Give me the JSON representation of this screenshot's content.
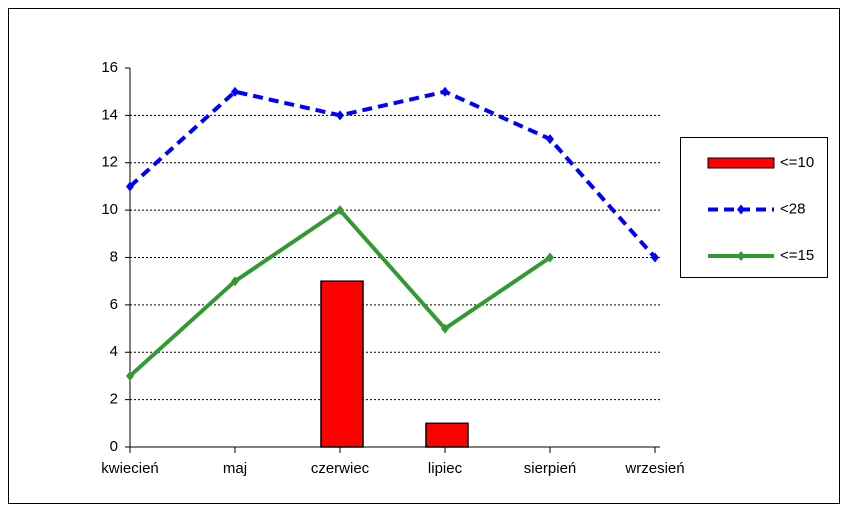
{
  "chart_data": {
    "type": "bar-line",
    "categories": [
      "kwiecień",
      "maj",
      "czerwiec",
      "lipiec",
      "sierpień",
      "wrzesień"
    ],
    "series": [
      {
        "name": "<=10",
        "type": "bar",
        "color": "#ff0000",
        "values": [
          0,
          0,
          7,
          1,
          0,
          0
        ]
      },
      {
        "name": "<28",
        "type": "line",
        "dashed": true,
        "color": "#0000ff",
        "values": [
          11,
          15,
          14,
          15,
          13,
          8
        ]
      },
      {
        "name": "<=15",
        "type": "line",
        "color": "#339933",
        "values": [
          3,
          7,
          10,
          5,
          8,
          null
        ]
      }
    ],
    "ylim": [
      0,
      16
    ],
    "yticks": [
      0,
      2,
      4,
      6,
      8,
      10,
      12,
      14,
      16
    ],
    "grid": true,
    "legend": "right"
  }
}
